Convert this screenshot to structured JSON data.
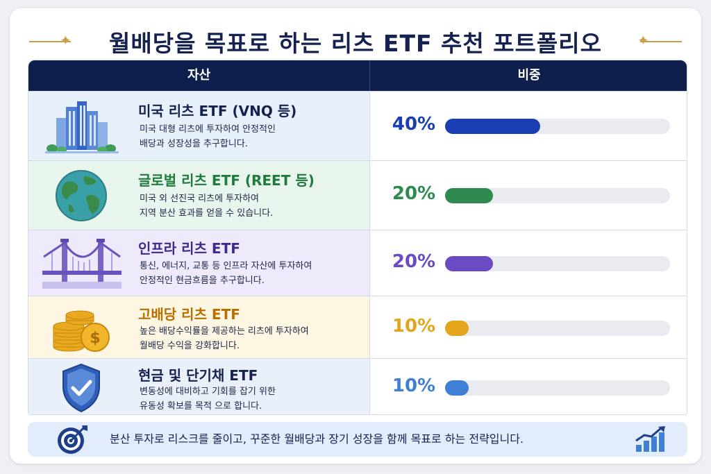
{
  "title": "월배당을 목표로 하는 리츠 ETF 추천 포트폴리오",
  "header": {
    "asset": "자산",
    "weight": "비중"
  },
  "rows": [
    {
      "title": "미국 리츠 ETF (VNQ 등)",
      "desc1": "미국 대형 리츠에 투자하여 안정적인",
      "desc2": "배당과 성장성을 추구합니다.",
      "percent": "40%",
      "value": 40,
      "color": "#1a3fb5",
      "bg": "#e8f0fc",
      "icon": "city-buildings-icon"
    },
    {
      "title": "글로벌 리츠 ETF (REET 등)",
      "desc1": "미국 외 선진국 리츠에 투자하여",
      "desc2": "지역 분산 효과를 얻을 수 있습니다.",
      "percent": "20%",
      "value": 20,
      "color": "#2e8a4e",
      "bg": "#e8f5ec",
      "icon": "globe-icon"
    },
    {
      "title": "인프라 리츠 ETF",
      "desc1": "통신, 에너지, 교통 등 인프라 자산에 투자하여",
      "desc2": "안정적인 현금흐름을 추구합니다.",
      "percent": "20%",
      "value": 20,
      "color": "#6a4bc4",
      "bg": "#efeafb",
      "icon": "bridge-icon"
    },
    {
      "title": "고배당 리츠 ETF",
      "desc1": "높은 배당수익률을 제공하는 리츠에 투자하여",
      "desc2": "월배당 수익을 강화합니다.",
      "percent": "10%",
      "value": 10,
      "color": "#e3a51c",
      "bg": "#fdf6e3",
      "icon": "coins-icon"
    },
    {
      "title": "현금 및 단기채 ETF",
      "desc1": "변동성에 대비하고 기회를 잡기 위한",
      "desc2": "유동성 확보를 목적 으로 합니다.",
      "percent": "10%",
      "value": 10,
      "color": "#3f7fd6",
      "bg": "#e9f0fa",
      "icon": "shield-check-icon"
    }
  ],
  "footer": {
    "text": "분산 투자로 리스크를 줄이고, 꾸준한 월배당과 장기 성장을 함께 목표로 하는 전략입니다.",
    "left_icon": "target-icon",
    "right_icon": "growth-chart-icon"
  },
  "colors": {
    "navy": "#0f1f4d",
    "gold": "#c9a04a"
  }
}
